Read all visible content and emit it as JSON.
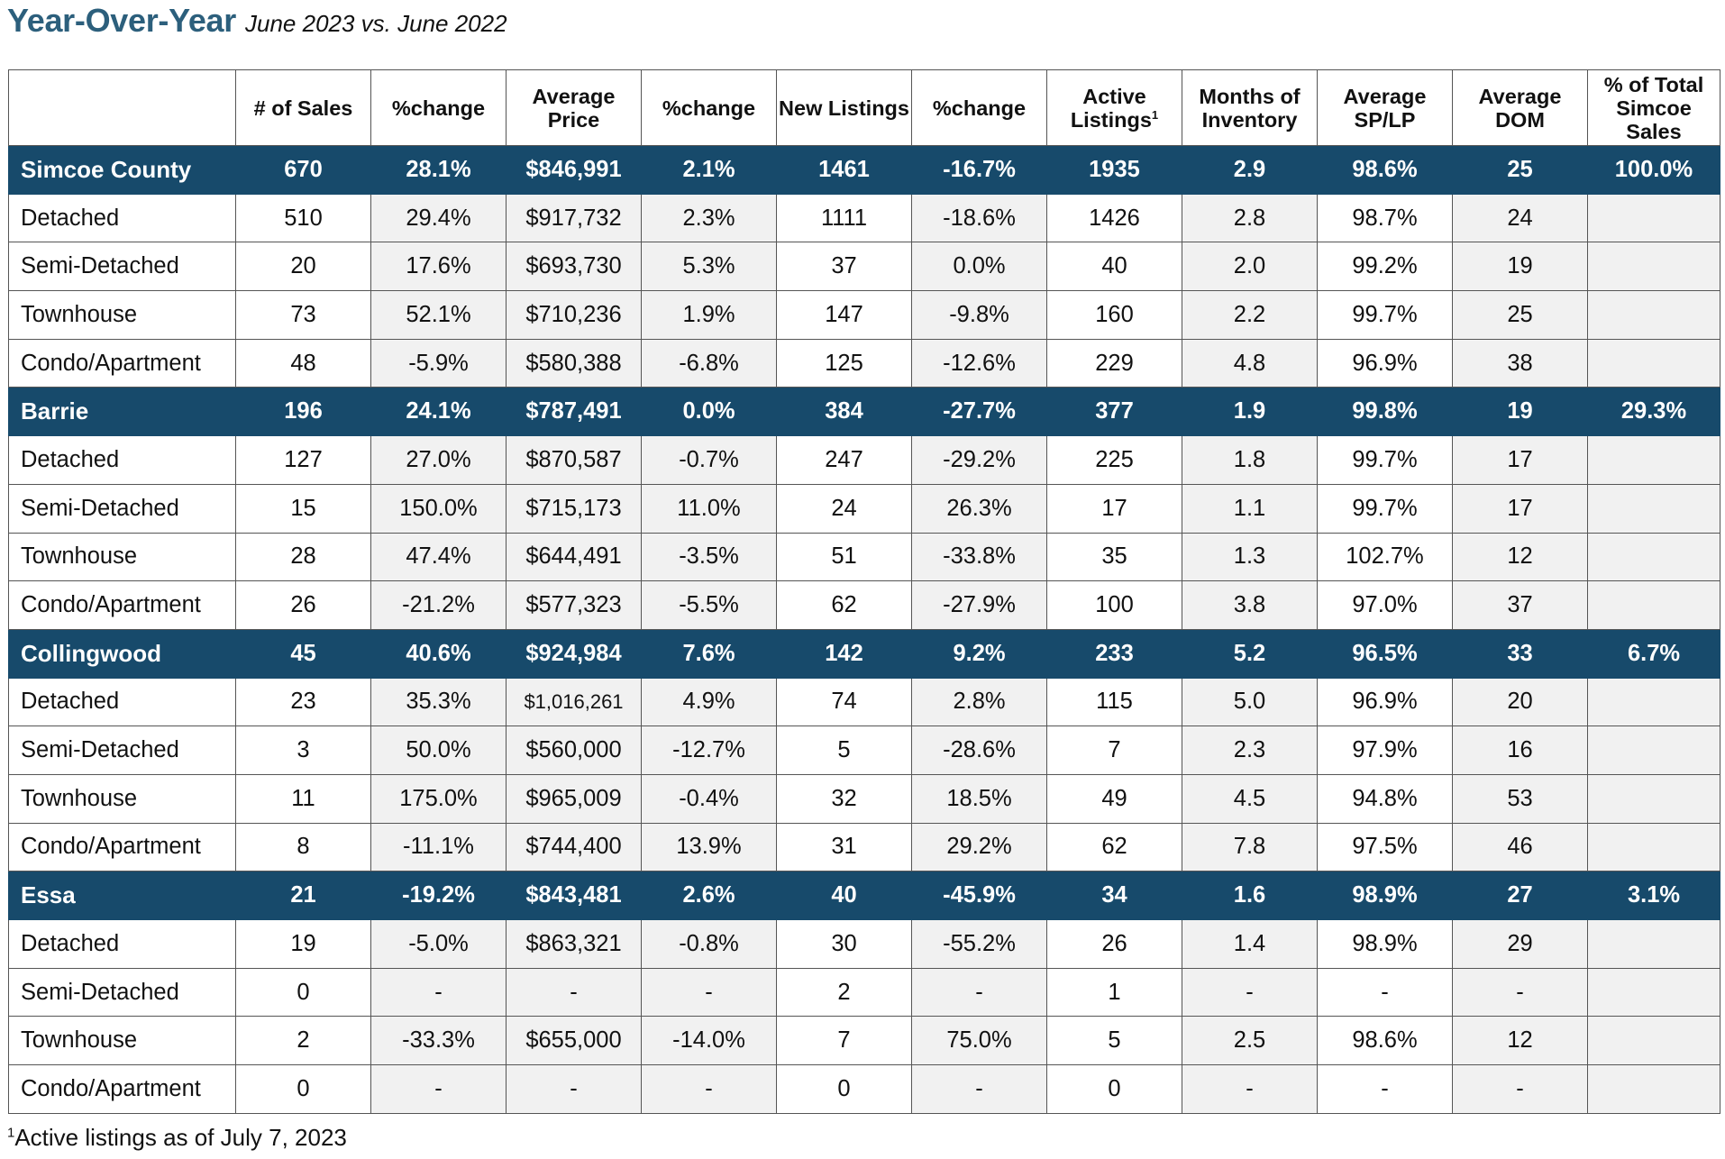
{
  "header": {
    "title": "Year-Over-Year",
    "subtitle": "June 2023 vs. June 2022"
  },
  "columns": [
    "",
    "# of Sales",
    "%change",
    "Average Price",
    "%change",
    "New Listings",
    "%change",
    "Active Listings",
    "Months of Inventory",
    "Average SP/LP",
    "Average DOM",
    "% of Total Simcoe Sales"
  ],
  "active_listings_footnote_mark": "1",
  "rows": [
    {
      "kind": "region",
      "cells": [
        "Simcoe County",
        "670",
        "28.1%",
        "$846,991",
        "2.1%",
        "1461",
        "-16.7%",
        "1935",
        "2.9",
        "98.6%",
        "25",
        "100.0%"
      ]
    },
    {
      "kind": "sub",
      "cells": [
        "Detached",
        "510",
        "29.4%",
        "$917,732",
        "2.3%",
        "1111",
        "-18.6%",
        "1426",
        "2.8",
        "98.7%",
        "24",
        ""
      ]
    },
    {
      "kind": "sub",
      "cells": [
        "Semi-Detached",
        "20",
        "17.6%",
        "$693,730",
        "5.3%",
        "37",
        "0.0%",
        "40",
        "2.0",
        "99.2%",
        "19",
        ""
      ]
    },
    {
      "kind": "sub",
      "cells": [
        "Townhouse",
        "73",
        "52.1%",
        "$710,236",
        "1.9%",
        "147",
        "-9.8%",
        "160",
        "2.2",
        "99.7%",
        "25",
        ""
      ]
    },
    {
      "kind": "sub",
      "cells": [
        "Condo/Apartment",
        "48",
        "-5.9%",
        "$580,388",
        "-6.8%",
        "125",
        "-12.6%",
        "229",
        "4.8",
        "96.9%",
        "38",
        ""
      ]
    },
    {
      "kind": "region",
      "cells": [
        "Barrie",
        "196",
        "24.1%",
        "$787,491",
        "0.0%",
        "384",
        "-27.7%",
        "377",
        "1.9",
        "99.8%",
        "19",
        "29.3%"
      ]
    },
    {
      "kind": "sub",
      "cells": [
        "Detached",
        "127",
        "27.0%",
        "$870,587",
        "-0.7%",
        "247",
        "-29.2%",
        "225",
        "1.8",
        "99.7%",
        "17",
        ""
      ]
    },
    {
      "kind": "sub",
      "cells": [
        "Semi-Detached",
        "15",
        "150.0%",
        "$715,173",
        "11.0%",
        "24",
        "26.3%",
        "17",
        "1.1",
        "99.7%",
        "17",
        ""
      ]
    },
    {
      "kind": "sub",
      "cells": [
        "Townhouse",
        "28",
        "47.4%",
        "$644,491",
        "-3.5%",
        "51",
        "-33.8%",
        "35",
        "1.3",
        "102.7%",
        "12",
        ""
      ]
    },
    {
      "kind": "sub",
      "cells": [
        "Condo/Apartment",
        "26",
        "-21.2%",
        "$577,323",
        "-5.5%",
        "62",
        "-27.9%",
        "100",
        "3.8",
        "97.0%",
        "37",
        ""
      ]
    },
    {
      "kind": "region",
      "cells": [
        "Collingwood",
        "45",
        "40.6%",
        "$924,984",
        "7.6%",
        "142",
        "9.2%",
        "233",
        "5.2",
        "96.5%",
        "33",
        "6.7%"
      ]
    },
    {
      "kind": "sub",
      "cells": [
        "Detached",
        "23",
        "35.3%",
        "$1,016,261",
        "4.9%",
        "74",
        "2.8%",
        "115",
        "5.0",
        "96.9%",
        "20",
        ""
      ]
    },
    {
      "kind": "sub",
      "cells": [
        "Semi-Detached",
        "3",
        "50.0%",
        "$560,000",
        "-12.7%",
        "5",
        "-28.6%",
        "7",
        "2.3",
        "97.9%",
        "16",
        ""
      ]
    },
    {
      "kind": "sub",
      "cells": [
        "Townhouse",
        "11",
        "175.0%",
        "$965,009",
        "-0.4%",
        "32",
        "18.5%",
        "49",
        "4.5",
        "94.8%",
        "53",
        ""
      ]
    },
    {
      "kind": "sub",
      "cells": [
        "Condo/Apartment",
        "8",
        "-11.1%",
        "$744,400",
        "13.9%",
        "31",
        "29.2%",
        "62",
        "7.8",
        "97.5%",
        "46",
        ""
      ]
    },
    {
      "kind": "region",
      "cells": [
        "Essa",
        "21",
        "-19.2%",
        "$843,481",
        "2.6%",
        "40",
        "-45.9%",
        "34",
        "1.6",
        "98.9%",
        "27",
        "3.1%"
      ]
    },
    {
      "kind": "sub",
      "cells": [
        "Detached",
        "19",
        "-5.0%",
        "$863,321",
        "-0.8%",
        "30",
        "-55.2%",
        "26",
        "1.4",
        "98.9%",
        "29",
        ""
      ]
    },
    {
      "kind": "sub",
      "cells": [
        "Semi-Detached",
        "0",
        "-",
        "-",
        "-",
        "2",
        "-",
        "1",
        "-",
        "-",
        "-",
        ""
      ]
    },
    {
      "kind": "sub",
      "cells": [
        "Townhouse",
        "2",
        "-33.3%",
        "$655,000",
        "-14.0%",
        "7",
        "75.0%",
        "5",
        "2.5",
        "98.6%",
        "12",
        ""
      ]
    },
    {
      "kind": "sub",
      "cells": [
        "Condo/Apartment",
        "0",
        "-",
        "-",
        "-",
        "0",
        "-",
        "0",
        "-",
        "-",
        "-",
        ""
      ]
    }
  ],
  "footnote": {
    "mark": "1",
    "text": "Active listings as of July 7, 2023"
  }
}
